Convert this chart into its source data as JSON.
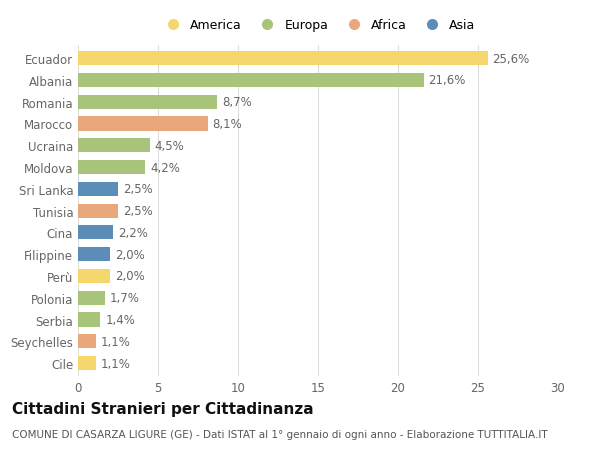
{
  "categories": [
    "Cile",
    "Seychelles",
    "Serbia",
    "Polonia",
    "Perù",
    "Filippine",
    "Cina",
    "Tunisia",
    "Sri Lanka",
    "Moldova",
    "Ucraina",
    "Marocco",
    "Romania",
    "Albania",
    "Ecuador"
  ],
  "values": [
    1.1,
    1.1,
    1.4,
    1.7,
    2.0,
    2.0,
    2.2,
    2.5,
    2.5,
    4.2,
    4.5,
    8.1,
    8.7,
    21.6,
    25.6
  ],
  "labels": [
    "1,1%",
    "1,1%",
    "1,4%",
    "1,7%",
    "2,0%",
    "2,0%",
    "2,2%",
    "2,5%",
    "2,5%",
    "4,2%",
    "4,5%",
    "8,1%",
    "8,7%",
    "21,6%",
    "25,6%"
  ],
  "colors": [
    "#f5d76e",
    "#e8a87c",
    "#a8c47a",
    "#a8c47a",
    "#f5d76e",
    "#5b8db8",
    "#5b8db8",
    "#e8a87c",
    "#5b8db8",
    "#a8c47a",
    "#a8c47a",
    "#e8a87c",
    "#a8c47a",
    "#a8c47a",
    "#f5d76e"
  ],
  "legend_labels": [
    "America",
    "Europa",
    "Africa",
    "Asia"
  ],
  "legend_colors": [
    "#f5d76e",
    "#a8c47a",
    "#e8a87c",
    "#5b8db8"
  ],
  "title": "Cittadini Stranieri per Cittadinanza",
  "subtitle": "COMUNE DI CASARZA LIGURE (GE) - Dati ISTAT al 1° gennaio di ogni anno - Elaborazione TUTTITALIA.IT",
  "xlim": [
    0,
    30
  ],
  "xticks": [
    0,
    5,
    10,
    15,
    20,
    25,
    30
  ],
  "background_color": "#ffffff",
  "grid_color": "#dddddd",
  "bar_height": 0.65,
  "label_fontsize": 8.5,
  "tick_fontsize": 8.5,
  "title_fontsize": 11,
  "subtitle_fontsize": 7.5
}
